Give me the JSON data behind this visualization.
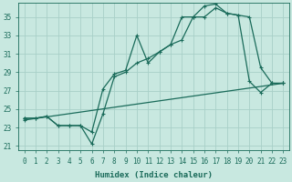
{
  "xlabel": "Humidex (Indice chaleur)",
  "xlim": [
    -0.5,
    23.5
  ],
  "ylim": [
    20.5,
    36.5
  ],
  "xticks": [
    0,
    1,
    2,
    3,
    4,
    5,
    6,
    7,
    8,
    9,
    10,
    11,
    12,
    13,
    14,
    15,
    16,
    17,
    18,
    19,
    20,
    21,
    22,
    23
  ],
  "yticks": [
    21,
    23,
    25,
    27,
    29,
    31,
    33,
    35
  ],
  "bg_color": "#c8e8e0",
  "line_color": "#1a6b5a",
  "grid_color": "#a8d0c8",
  "line1_x": [
    0,
    1,
    2,
    3,
    4,
    5,
    6,
    7,
    8,
    9,
    10,
    11,
    12,
    13,
    14,
    15,
    16,
    17,
    18,
    19,
    20,
    21,
    22,
    23
  ],
  "line1_y": [
    24.0,
    24.0,
    24.2,
    23.2,
    23.2,
    23.2,
    22.5,
    27.2,
    28.8,
    29.2,
    33.0,
    30.0,
    31.2,
    32.0,
    35.0,
    35.0,
    36.2,
    36.4,
    35.4,
    35.2,
    35.0,
    29.5,
    27.8,
    27.8
  ],
  "line2_x": [
    0,
    1,
    2,
    3,
    4,
    5,
    6,
    7,
    8,
    9,
    10,
    11,
    12,
    13,
    14,
    15,
    16,
    17,
    18,
    19,
    20,
    21,
    22,
    23
  ],
  "line2_y": [
    24.0,
    24.0,
    24.2,
    23.2,
    23.2,
    23.2,
    21.2,
    24.5,
    28.5,
    29.0,
    30.0,
    30.5,
    31.2,
    32.0,
    32.5,
    35.0,
    35.0,
    36.0,
    35.4,
    35.2,
    28.0,
    26.8,
    27.8,
    27.8
  ],
  "line3_x": [
    0,
    23
  ],
  "line3_y": [
    23.8,
    27.8
  ],
  "marker_size": 3.0,
  "linewidth": 0.9,
  "tick_fontsize": 5.5,
  "label_fontsize": 6.5
}
